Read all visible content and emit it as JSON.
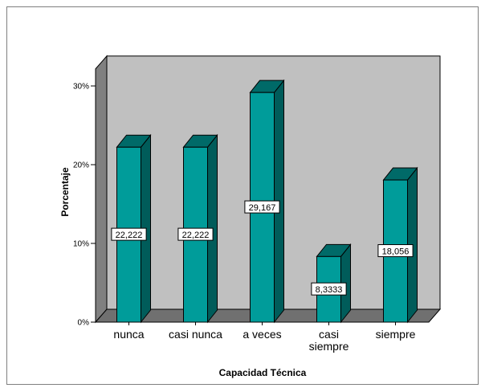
{
  "chart_data": {
    "type": "bar",
    "style": "3d",
    "categories": [
      "nunca",
      "casi nunca",
      "a veces",
      "casi siempre",
      "siempre"
    ],
    "category_label_lines": [
      [
        "nunca"
      ],
      [
        "casi nunca"
      ],
      [
        "a veces"
      ],
      [
        "casi",
        "siempre"
      ],
      [
        "siempre"
      ]
    ],
    "values": [
      22.222,
      22.222,
      29.167,
      8.3333,
      18.056
    ],
    "data_labels": [
      "22,222",
      "22,222",
      "29,167",
      "8,3333",
      "18,056"
    ],
    "xlabel": "Capacidad Técnica",
    "ylabel": "Porcentaje",
    "ylim": [
      0,
      30
    ],
    "yticks": [
      0,
      10,
      20,
      30
    ],
    "ytick_labels": [
      "0%",
      "10%",
      "20%",
      "30%"
    ],
    "grid": false,
    "colors": {
      "bar_front": "#009c9a",
      "bar_side": "#005c5a",
      "bar_top": "#006a68",
      "back_wall": "#c0c0c0",
      "side_wall": "#808080",
      "floor": "#707070"
    }
  }
}
